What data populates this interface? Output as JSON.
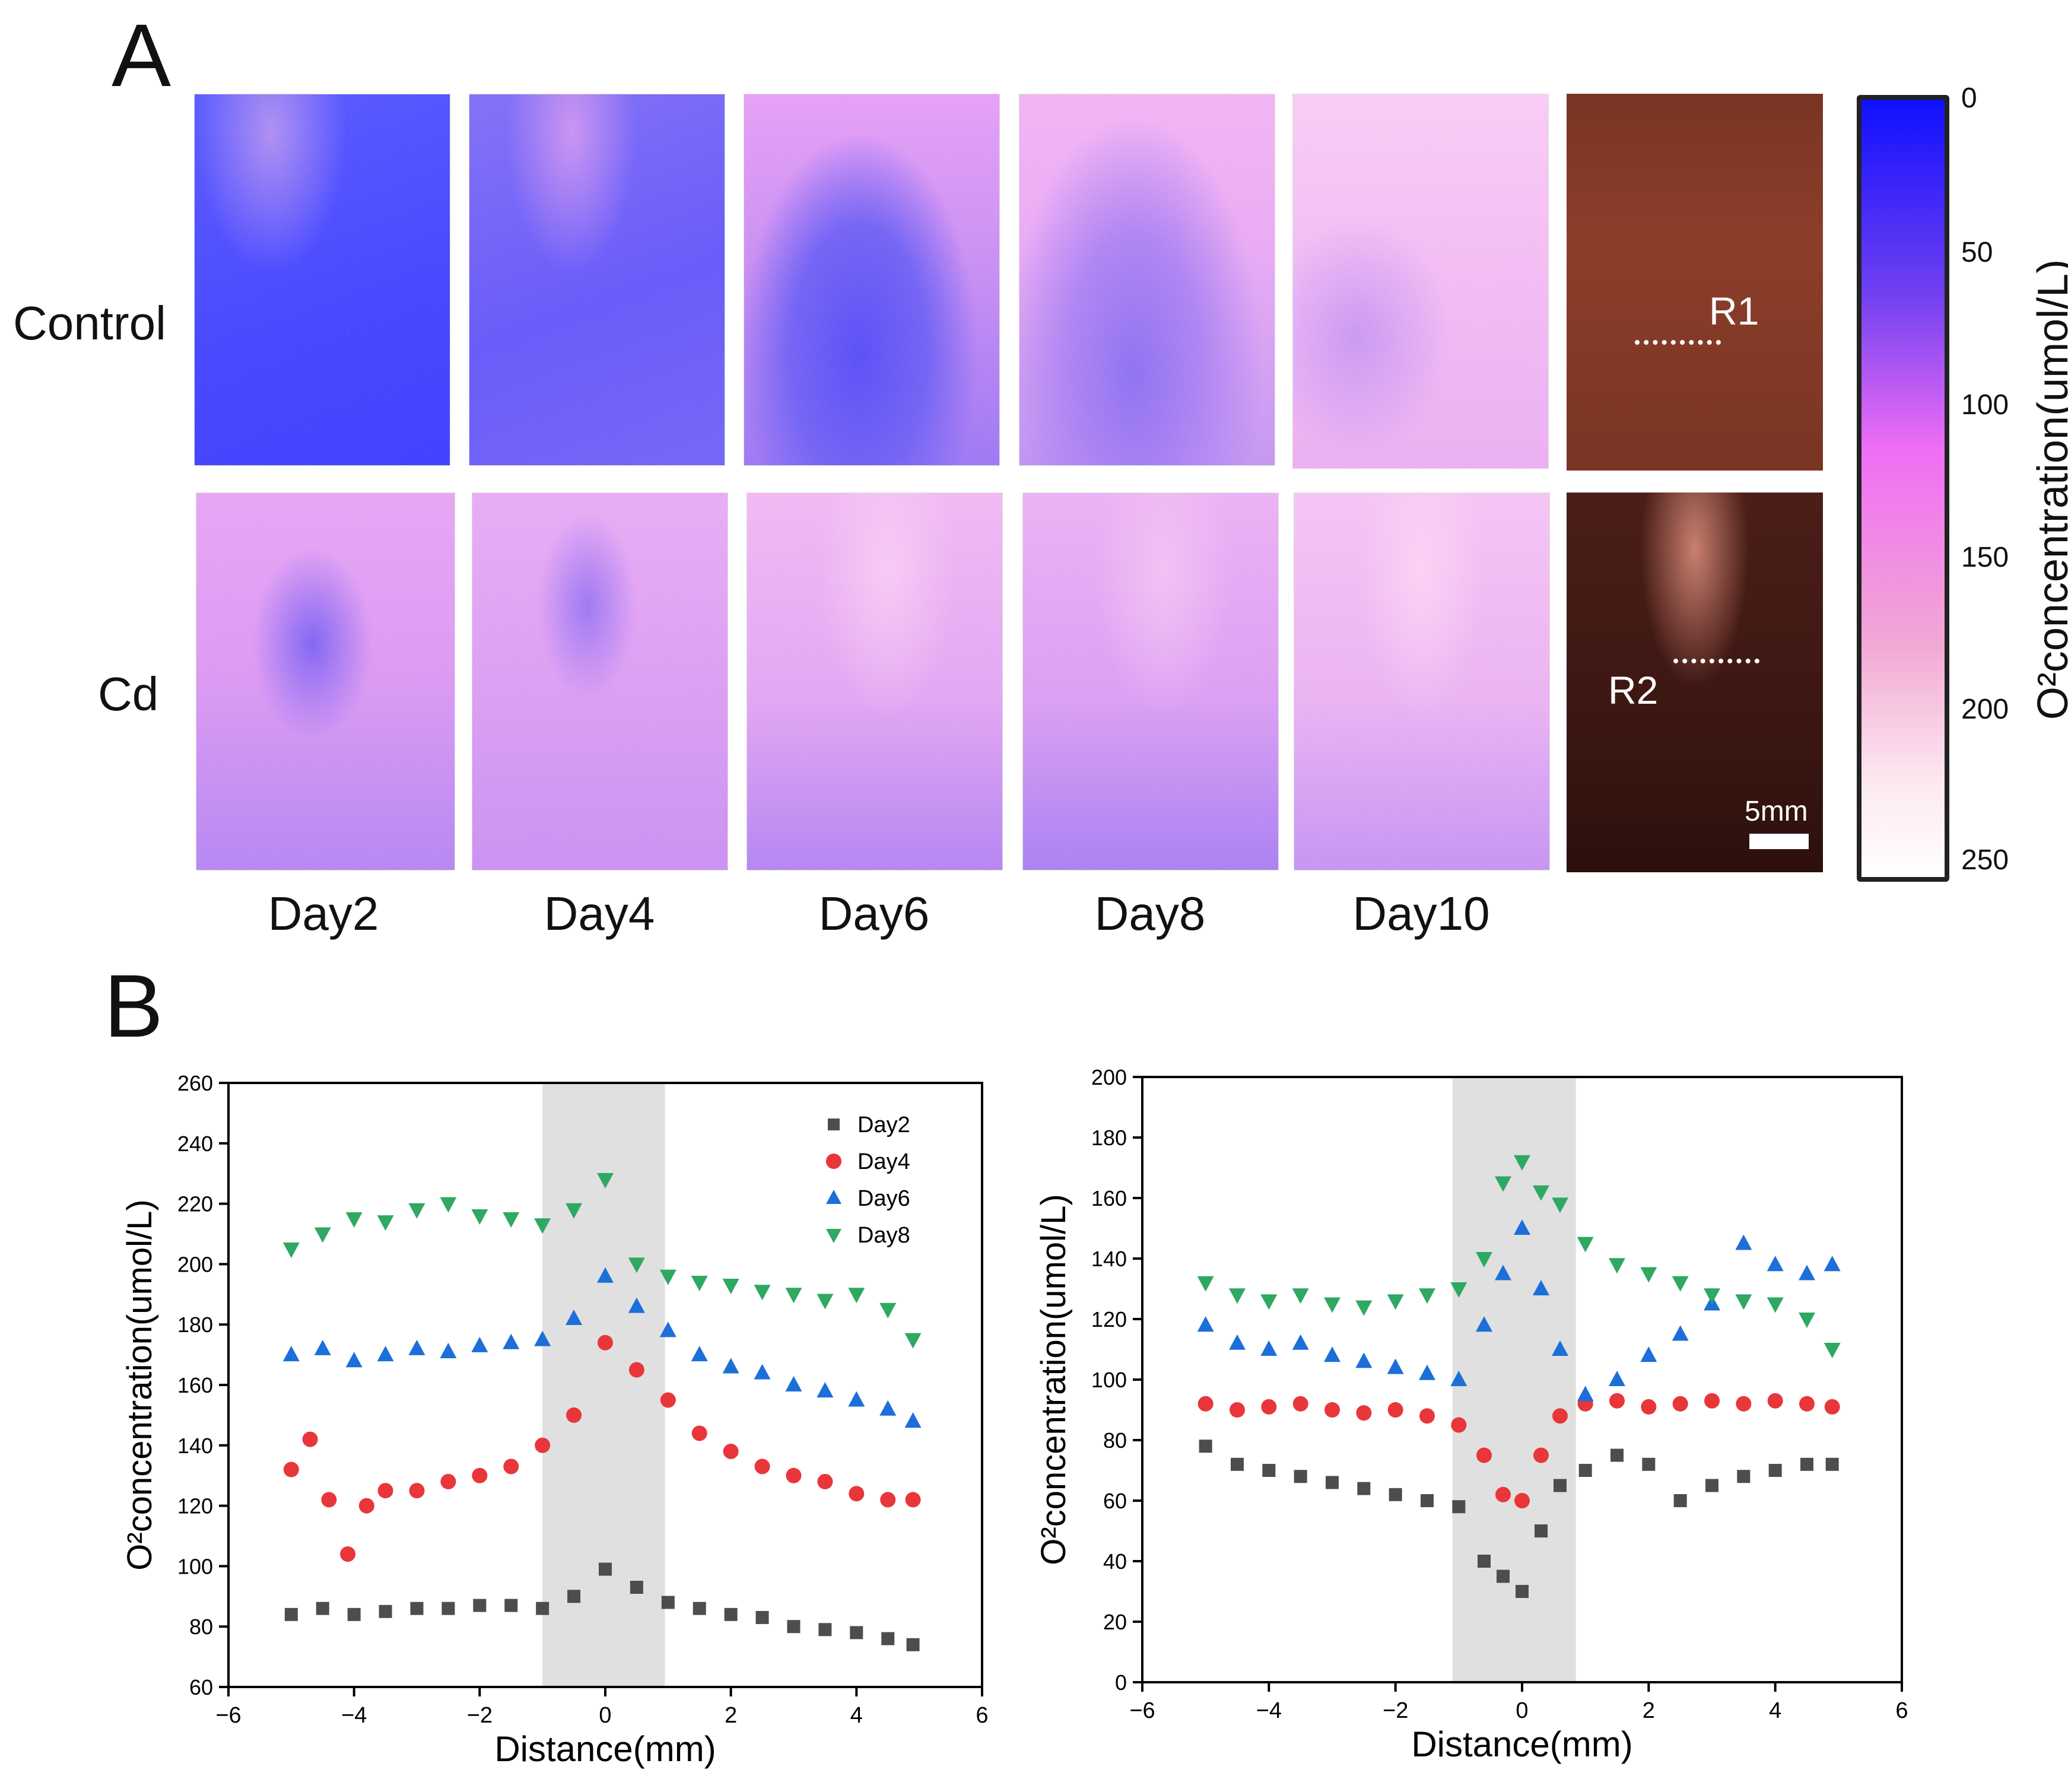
{
  "panel_a_label": "A",
  "panel_b_label": "B",
  "rows": [
    "Control",
    "Cd"
  ],
  "days": [
    "Day2",
    "Day4",
    "Day6",
    "Day8",
    "Day10"
  ],
  "roi_labels": [
    "R1",
    "R2"
  ],
  "scale_bar": "5mm",
  "colorbar": {
    "label": "O²concentration(umol/L)",
    "ticks": [
      "0",
      "50",
      "100",
      "150",
      "200",
      "250"
    ],
    "colors": [
      "#1010ff",
      "#7040f0",
      "#f06ef5",
      "#f2a8d4",
      "#fde9f1",
      "#ffffff"
    ]
  },
  "chart_data": [
    {
      "type": "scatter",
      "xlabel": "Distance(mm)",
      "ylabel": "O²concentration(umol/L)",
      "xlim": [
        -6,
        6
      ],
      "ylim": [
        60,
        260
      ],
      "xticks": [
        "−6",
        "−4",
        "−2",
        "0",
        "2",
        "4",
        "6"
      ],
      "yticks": [
        "60",
        "80",
        "100",
        "120",
        "140",
        "160",
        "180",
        "200",
        "220",
        "240",
        "260"
      ],
      "shaded_region": [
        -1,
        0.95
      ],
      "legend": "top-right",
      "series": [
        {
          "name": "Day2",
          "marker": "square",
          "color": "#4d4d4d",
          "x": [
            -5,
            -4.5,
            -4,
            -3.5,
            -3,
            -2.5,
            -2,
            -1.5,
            -1,
            -0.5,
            0,
            0.5,
            1,
            1.5,
            2,
            2.5,
            3,
            3.5,
            4,
            4.5,
            4.9
          ],
          "y": [
            84,
            86,
            84,
            85,
            86,
            86,
            87,
            87,
            86,
            90,
            99,
            93,
            88,
            86,
            84,
            83,
            80,
            79,
            78,
            76,
            74
          ]
        },
        {
          "name": "Day4",
          "marker": "circle",
          "color": "#e8363a",
          "x": [
            -5,
            -4.7,
            -4.4,
            -4.1,
            -3.8,
            -3.5,
            -3,
            -2.5,
            -2,
            -1.5,
            -1,
            -0.5,
            0,
            0.5,
            1,
            1.5,
            2,
            2.5,
            3,
            3.5,
            4,
            4.5,
            4.9
          ],
          "y": [
            132,
            142,
            122,
            104,
            120,
            125,
            125,
            128,
            130,
            133,
            140,
            150,
            174,
            165,
            155,
            144,
            138,
            133,
            130,
            128,
            124,
            122,
            122
          ]
        },
        {
          "name": "Day6",
          "marker": "triangle-up",
          "color": "#1c6fd8",
          "x": [
            -5,
            -4.5,
            -4,
            -3.5,
            -3,
            -2.5,
            -2,
            -1.5,
            -1,
            -0.5,
            0,
            0.5,
            1,
            1.5,
            2,
            2.5,
            3,
            3.5,
            4,
            4.5,
            4.9
          ],
          "y": [
            170,
            172,
            168,
            170,
            172,
            171,
            173,
            174,
            175,
            182,
            196,
            186,
            178,
            170,
            166,
            164,
            160,
            158,
            155,
            152,
            148
          ]
        },
        {
          "name": "Day8",
          "marker": "triangle-down",
          "color": "#2ea862",
          "x": [
            -5,
            -4.5,
            -4,
            -3.5,
            -3,
            -2.5,
            -2,
            -1.5,
            -1,
            -0.5,
            0,
            0.5,
            1,
            1.5,
            2,
            2.5,
            3,
            3.5,
            4,
            4.5,
            4.9
          ],
          "y": [
            205,
            210,
            215,
            214,
            218,
            220,
            216,
            215,
            213,
            218,
            228,
            200,
            196,
            194,
            193,
            191,
            190,
            188,
            190,
            185,
            175
          ]
        }
      ]
    },
    {
      "type": "scatter",
      "xlabel": "Distance(mm)",
      "ylabel": "O²concentration(umol/L)",
      "xlim": [
        -6,
        6
      ],
      "ylim": [
        0,
        200
      ],
      "xticks": [
        "−6",
        "−4",
        "−2",
        "0",
        "2",
        "4",
        "6"
      ],
      "yticks": [
        "0",
        "20",
        "40",
        "60",
        "80",
        "100",
        "120",
        "140",
        "160",
        "180",
        "200"
      ],
      "shaded_region": [
        -1.1,
        0.85
      ],
      "series": [
        {
          "name": "Day2",
          "marker": "square",
          "color": "#4d4d4d",
          "x": [
            -5,
            -4.5,
            -4,
            -3.5,
            -3,
            -2.5,
            -2,
            -1.5,
            -1,
            -0.6,
            -0.3,
            0,
            0.3,
            0.6,
            1,
            1.5,
            2,
            2.5,
            3,
            3.5,
            4,
            4.5,
            4.9
          ],
          "y": [
            78,
            72,
            70,
            68,
            66,
            64,
            62,
            60,
            58,
            40,
            35,
            30,
            50,
            65,
            70,
            75,
            72,
            60,
            65,
            68,
            70,
            72,
            72
          ]
        },
        {
          "name": "Day4",
          "marker": "circle",
          "color": "#e8363a",
          "x": [
            -5,
            -4.5,
            -4,
            -3.5,
            -3,
            -2.5,
            -2,
            -1.5,
            -1,
            -0.6,
            -0.3,
            0,
            0.3,
            0.6,
            1,
            1.5,
            2,
            2.5,
            3,
            3.5,
            4,
            4.5,
            4.9
          ],
          "y": [
            92,
            90,
            91,
            92,
            90,
            89,
            90,
            88,
            85,
            75,
            62,
            60,
            75,
            88,
            92,
            93,
            91,
            92,
            93,
            92,
            93,
            92,
            91
          ]
        },
        {
          "name": "Day6",
          "marker": "triangle-up",
          "color": "#1c6fd8",
          "x": [
            -5,
            -4.5,
            -4,
            -3.5,
            -3,
            -2.5,
            -2,
            -1.5,
            -1,
            -0.6,
            -0.3,
            0,
            0.3,
            0.6,
            1,
            1.5,
            2,
            2.5,
            3,
            3.5,
            4,
            4.5,
            4.9
          ],
          "y": [
            118,
            112,
            110,
            112,
            108,
            106,
            104,
            102,
            100,
            118,
            135,
            150,
            130,
            110,
            95,
            100,
            108,
            115,
            125,
            145,
            138,
            135,
            138
          ]
        },
        {
          "name": "Day8",
          "marker": "triangle-down",
          "color": "#2ea862",
          "x": [
            -5,
            -4.5,
            -4,
            -3.5,
            -3,
            -2.5,
            -2,
            -1.5,
            -1,
            -0.6,
            -0.3,
            0,
            0.3,
            0.6,
            1,
            1.5,
            2,
            2.5,
            3,
            3.5,
            4,
            4.5,
            4.9
          ],
          "y": [
            132,
            128,
            126,
            128,
            125,
            124,
            126,
            128,
            130,
            140,
            165,
            172,
            162,
            158,
            145,
            138,
            135,
            132,
            128,
            126,
            125,
            120,
            110
          ]
        }
      ]
    }
  ]
}
